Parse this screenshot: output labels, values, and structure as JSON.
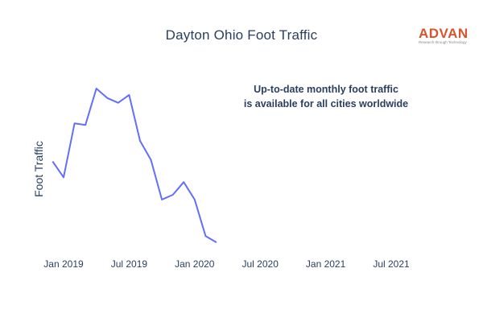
{
  "chart_data": {
    "type": "line",
    "title": "Dayton Ohio Foot Traffic",
    "xlabel": "",
    "ylabel": "Foot Traffic",
    "x_tick_labels": [
      "Jan 2019",
      "Jul 2019",
      "Jan 2020",
      "Jul 2020",
      "Jan 2021",
      "Jul 2021"
    ],
    "x_tick_dates": [
      "2019-01",
      "2019-07",
      "2020-01",
      "2020-07",
      "2021-01",
      "2021-07"
    ],
    "xlim": [
      "2018-11",
      "2021-10"
    ],
    "y_tick_labels": [],
    "ylim": [
      0,
      100
    ],
    "grid": false,
    "series": [
      {
        "color": "#636efa",
        "points": [
          {
            "x": "2018-12",
            "y": 54
          },
          {
            "x": "2019-01",
            "y": 44
          },
          {
            "x": "2019-02",
            "y": 78
          },
          {
            "x": "2019-03",
            "y": 77
          },
          {
            "x": "2019-04",
            "y": 100
          },
          {
            "x": "2019-05",
            "y": 94
          },
          {
            "x": "2019-06",
            "y": 91
          },
          {
            "x": "2019-07",
            "y": 96
          },
          {
            "x": "2019-08",
            "y": 67
          },
          {
            "x": "2019-09",
            "y": 55
          },
          {
            "x": "2019-10",
            "y": 30
          },
          {
            "x": "2019-11",
            "y": 33
          },
          {
            "x": "2019-12",
            "y": 41
          },
          {
            "x": "2020-01",
            "y": 30
          },
          {
            "x": "2020-02",
            "y": 7
          },
          {
            "x": "2020-03",
            "y": 3
          }
        ]
      }
    ],
    "annotation": [
      "Up-to-date monthly foot traffic",
      "is available for all cities worldwide"
    ]
  },
  "logo": {
    "name": "ADVAN",
    "tagline": "Research through Technology",
    "color": "#d9532c"
  }
}
